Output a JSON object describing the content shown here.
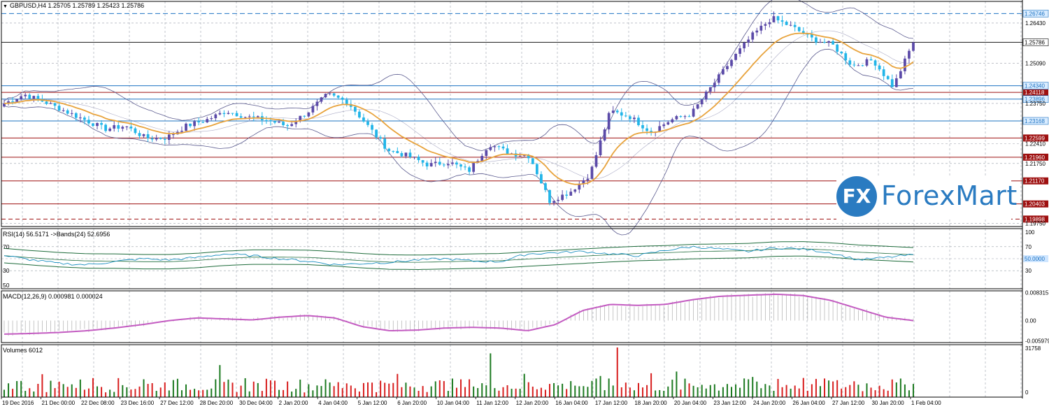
{
  "window": {
    "header": "GBPUSD,H4  1.25705 1.25789 1.25423 1.25786"
  },
  "logo": {
    "mark": "FX",
    "text": "ForexMart"
  },
  "colors": {
    "bull": "#5b4aa8",
    "bear": "#22b5e8",
    "ma": "#e8a33c",
    "bands": "#5b5b8f",
    "rsi": "#1a8fc0",
    "rsi_bands": "#1d6b3a",
    "macd_signal": "#c35bc1",
    "vol_up": "#1c7a20",
    "vol_down": "#d81e1e",
    "grid": "#9aa0aa",
    "support_resistance": "#9e1010",
    "blue_level": "#1e73c2"
  },
  "chart_data": [
    {
      "type": "candlestick",
      "title": "GBPUSD,H4",
      "symbol": "GBPUSD",
      "timeframe": "H4",
      "ohlc_last": {
        "open": 1.25705,
        "high": 1.25789,
        "low": 1.25423,
        "close": 1.25786
      },
      "y_ticks": [
        "1.26430",
        "1.25090",
        "1.23750",
        "1.22410",
        "1.21750",
        "1.19750"
      ],
      "ylim": [
        1.1965,
        1.2715
      ],
      "x_ticks": [
        "19 Dec 2016",
        "21 Dec 00:00",
        "22 Dec 08:00",
        "23 Dec 16:00",
        "27 Dec 12:00",
        "28 Dec 20:00",
        "30 Dec 04:00",
        "2 Jan 20:00",
        "4 Jan 04:00",
        "5 Jan 12:00",
        "6 Jan 20:00",
        "10 Jan 04:00",
        "11 Jan 12:00",
        "12 Jan 20:00",
        "16 Jan 04:00",
        "17 Jan 12:00",
        "18 Jan 20:00",
        "20 Jan 04:00",
        "23 Jan 12:00",
        "24 Jan 20:00",
        "26 Jan 04:00",
        "27 Jan 12:00",
        "30 Jan 20:00",
        "1 Feb 04:00"
      ],
      "price_path": [
        1.2375,
        1.2405,
        1.238,
        1.235,
        1.232,
        1.229,
        1.23,
        1.226,
        1.226,
        1.23,
        1.232,
        1.235,
        1.233,
        1.232,
        1.23,
        1.2345,
        1.2405,
        1.238,
        1.23,
        1.222,
        1.22,
        1.217,
        1.218,
        1.215,
        1.224,
        1.221,
        1.22,
        1.205,
        1.208,
        1.214,
        1.235,
        1.233,
        1.228,
        1.232,
        1.234,
        1.243,
        1.252,
        1.26,
        1.266,
        1.263,
        1.259,
        1.257,
        1.25,
        1.252,
        1.243,
        1.258
      ],
      "resistance_levels": [
        "1.24118",
        "1.22599",
        "1.21960",
        "1.21170",
        "1.20403",
        "1.19898"
      ],
      "blue_levels": [
        "1.26746",
        "1.24340",
        "1.23896",
        "1.23168"
      ],
      "current_price": "1.25786"
    },
    {
      "type": "line",
      "title": "RSI(14) 56.5171  ->Bands(24) 52.6956",
      "y_ticks": [
        "70",
        "30",
        "50"
      ],
      "right_ticks": [
        "100",
        "70",
        "50.0000",
        "30"
      ],
      "ylim": [
        0,
        100
      ],
      "rsi_path": [
        55,
        48,
        42,
        40,
        45,
        50,
        48,
        52,
        58,
        55,
        50,
        46,
        40,
        42,
        44,
        48,
        50,
        46,
        45,
        58,
        60,
        62,
        58,
        55,
        64,
        70,
        66,
        62,
        68,
        66,
        60,
        48,
        52,
        56.5
      ]
    },
    {
      "type": "line",
      "title": "MACD(12,26,9) 0.000981 0.000024",
      "right_ticks": [
        "0.008315",
        "0.00",
        "-0.005979"
      ],
      "ylim": [
        -0.0065,
        0.0088
      ],
      "signal_path": [
        -0.004,
        -0.0038,
        -0.0035,
        -0.003,
        -0.0022,
        -0.0012,
        0.0,
        0.0008,
        0.0005,
        0.0002,
        0.001,
        0.0015,
        0.0008,
        -0.0018,
        -0.003,
        -0.0028,
        -0.0022,
        -0.002,
        -0.0022,
        -0.003,
        -0.0012,
        0.003,
        0.0048,
        0.0045,
        0.0048,
        0.0062,
        0.0072,
        0.0075,
        0.0078,
        0.0074,
        0.006,
        0.0035,
        0.001,
        0.0
      ]
    },
    {
      "type": "bar",
      "title": "Volumes 6012",
      "right_ticks": [
        "31758",
        "0"
      ],
      "ylim": [
        0,
        31758
      ]
    }
  ]
}
